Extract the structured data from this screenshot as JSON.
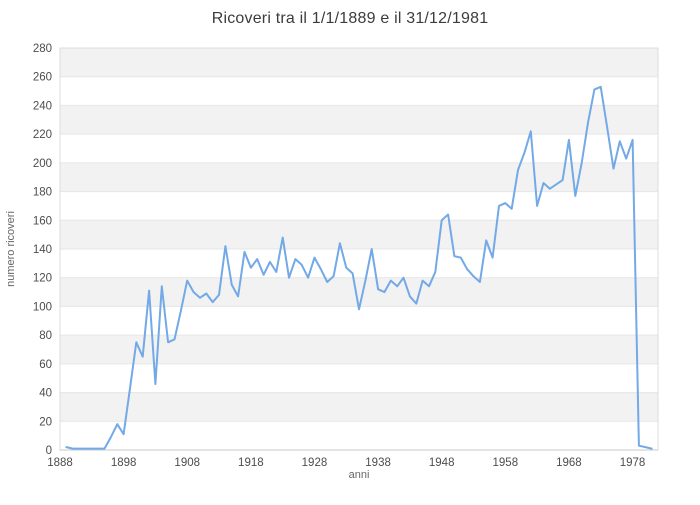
{
  "chart_data": {
    "type": "line",
    "title": "Ricoveri tra il 1/1/1889 e il 31/12/1981",
    "xlabel": "anni",
    "ylabel": "numero ricoveri",
    "x_start": 1889,
    "x_end": 1981,
    "x_step": 1,
    "values": [
      2,
      1,
      1,
      1,
      1,
      1,
      1,
      9,
      18,
      11,
      43,
      75,
      65,
      111,
      46,
      114,
      75,
      77,
      97,
      118,
      110,
      106,
      109,
      103,
      108,
      142,
      115,
      107,
      138,
      127,
      133,
      122,
      131,
      124,
      148,
      120,
      133,
      129,
      120,
      134,
      126,
      117,
      121,
      144,
      127,
      123,
      98,
      118,
      140,
      112,
      110,
      118,
      114,
      120,
      107,
      102,
      118,
      114,
      124,
      160,
      164,
      135,
      134,
      126,
      121,
      117,
      146,
      134,
      170,
      172,
      168,
      195,
      207,
      222,
      170,
      186,
      182,
      185,
      188,
      216,
      177,
      200,
      228,
      251,
      253,
      225,
      196,
      215,
      203,
      216,
      3,
      2,
      1
    ],
    "x_ticks": [
      1888,
      1898,
      1908,
      1918,
      1928,
      1938,
      1948,
      1958,
      1968,
      1978
    ],
    "y_ticks": [
      0,
      20,
      40,
      60,
      80,
      100,
      120,
      140,
      160,
      180,
      200,
      220,
      240,
      260,
      280
    ],
    "xlim": [
      1888,
      1982
    ],
    "ylim": [
      0,
      280
    ],
    "grid": "horizontal, alternating shaded bands",
    "legend": "none",
    "colors": {
      "line": "#72a9e6",
      "band": "#f2f2f2",
      "gridline": "#e6e6e6",
      "plot_border": "#dcdcdc",
      "axis_line": "#c9c9c9",
      "tick_label": "#4d4d4d",
      "axis_title": "#666666",
      "title": "#3c3c3c",
      "background": "#ffffff"
    }
  }
}
